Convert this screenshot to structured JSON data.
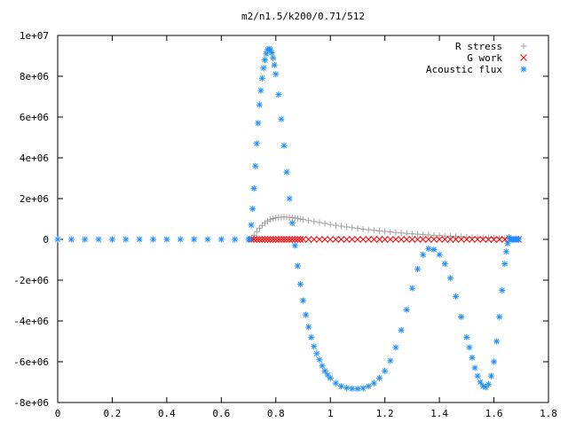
{
  "chart_data": {
    "type": "scatter",
    "title": "m2/n1.5/k200/0.71/512",
    "xlabel": "",
    "ylabel": "",
    "xlim": [
      0,
      1.8
    ],
    "ylim": [
      -8000000,
      10000000
    ],
    "x_ticks": [
      0,
      0.2,
      0.4,
      0.6,
      0.8,
      1,
      1.2,
      1.4,
      1.6,
      1.8
    ],
    "x_tick_labels": [
      "0",
      "0.2",
      "0.4",
      "0.6",
      "0.8",
      "1",
      "1.2",
      "1.4",
      "1.6",
      "1.8"
    ],
    "y_ticks": [
      -8000000,
      -6000000,
      -4000000,
      -2000000,
      0,
      2000000,
      4000000,
      6000000,
      8000000,
      10000000
    ],
    "y_tick_labels": [
      "-8e+06",
      "-6e+06",
      "-4e+06",
      "-2e+06",
      "0",
      "2e+06",
      "4e+06",
      "6e+06",
      "8e+06",
      "1e+07"
    ],
    "grid": false,
    "legend_position": "top-right",
    "series": [
      {
        "name": "R stress",
        "marker": "plus",
        "color": "#a0a0a0",
        "x": [
          0.71,
          0.72,
          0.73,
          0.74,
          0.75,
          0.76,
          0.77,
          0.78,
          0.79,
          0.8,
          0.81,
          0.82,
          0.83,
          0.84,
          0.85,
          0.86,
          0.87,
          0.88,
          0.89,
          0.9,
          0.92,
          0.94,
          0.96,
          0.98,
          1.0,
          1.02,
          1.04,
          1.06,
          1.08,
          1.1,
          1.12,
          1.14,
          1.16,
          1.18,
          1.2,
          1.22,
          1.24,
          1.26,
          1.28,
          1.3,
          1.32,
          1.34,
          1.36,
          1.38,
          1.4,
          1.42,
          1.44,
          1.46,
          1.48,
          1.5,
          1.52,
          1.54,
          1.56,
          1.58,
          1.6,
          1.62,
          1.64,
          1.66,
          1.68,
          1.69
        ],
        "y": [
          0,
          200000,
          380000,
          550000,
          690000,
          810000,
          900000,
          970000,
          1020000,
          1060000,
          1080000,
          1090000,
          1095000,
          1090000,
          1080000,
          1065000,
          1045000,
          1025000,
          1000000,
          975000,
          925000,
          875000,
          825000,
          780000,
          735000,
          690000,
          650000,
          610000,
          575000,
          540000,
          505000,
          475000,
          445000,
          415000,
          390000,
          365000,
          340000,
          315000,
          295000,
          275000,
          255000,
          235000,
          218000,
          200000,
          185000,
          170000,
          155000,
          142000,
          130000,
          118000,
          107000,
          96000,
          86000,
          77000,
          68000,
          60000,
          52000,
          45000,
          38000,
          35000
        ]
      },
      {
        "name": "G work",
        "marker": "cross",
        "color": "#ff0000",
        "x": [
          0.71,
          0.72,
          0.73,
          0.74,
          0.75,
          0.76,
          0.77,
          0.78,
          0.79,
          0.8,
          0.81,
          0.82,
          0.83,
          0.84,
          0.85,
          0.86,
          0.87,
          0.88,
          0.89,
          0.9,
          0.92,
          0.94,
          0.96,
          0.98,
          1.0,
          1.02,
          1.04,
          1.06,
          1.08,
          1.1,
          1.12,
          1.14,
          1.16,
          1.18,
          1.2,
          1.22,
          1.24,
          1.26,
          1.28,
          1.3,
          1.32,
          1.34,
          1.36,
          1.38,
          1.4,
          1.42,
          1.44,
          1.46,
          1.48,
          1.5,
          1.52,
          1.54,
          1.56,
          1.58,
          1.6,
          1.62,
          1.64,
          1.66,
          1.68,
          1.69
        ],
        "y": [
          0,
          0,
          0,
          0,
          0,
          0,
          0,
          0,
          0,
          0,
          0,
          0,
          0,
          0,
          0,
          0,
          0,
          0,
          0,
          0,
          0,
          0,
          0,
          0,
          0,
          0,
          0,
          0,
          0,
          0,
          0,
          0,
          0,
          0,
          0,
          0,
          0,
          0,
          0,
          0,
          0,
          0,
          0,
          0,
          0,
          0,
          0,
          0,
          0,
          0,
          0,
          0,
          0,
          0,
          0,
          0,
          0,
          0,
          0,
          0
        ]
      },
      {
        "name": "Acoustic flux",
        "marker": "star",
        "color": "#1e90ff",
        "x": [
          0,
          0.05,
          0.1,
          0.15,
          0.2,
          0.25,
          0.3,
          0.35,
          0.4,
          0.45,
          0.5,
          0.55,
          0.6,
          0.65,
          0.7,
          0.705,
          0.71,
          0.715,
          0.72,
          0.725,
          0.73,
          0.735,
          0.74,
          0.745,
          0.75,
          0.755,
          0.76,
          0.765,
          0.77,
          0.775,
          0.78,
          0.785,
          0.79,
          0.795,
          0.8,
          0.81,
          0.82,
          0.83,
          0.84,
          0.85,
          0.86,
          0.87,
          0.88,
          0.89,
          0.9,
          0.91,
          0.92,
          0.93,
          0.94,
          0.95,
          0.96,
          0.97,
          0.98,
          0.99,
          1.0,
          1.02,
          1.04,
          1.06,
          1.08,
          1.1,
          1.12,
          1.14,
          1.16,
          1.18,
          1.2,
          1.22,
          1.24,
          1.26,
          1.28,
          1.3,
          1.32,
          1.34,
          1.36,
          1.38,
          1.4,
          1.42,
          1.44,
          1.46,
          1.48,
          1.5,
          1.51,
          1.52,
          1.53,
          1.54,
          1.55,
          1.56,
          1.57,
          1.58,
          1.59,
          1.6,
          1.61,
          1.62,
          1.63,
          1.64,
          1.645,
          1.65,
          1.655,
          1.66,
          1.665,
          1.67,
          1.675,
          1.68,
          1.685,
          1.69
        ],
        "y": [
          0,
          0,
          0,
          0,
          0,
          0,
          0,
          0,
          0,
          0,
          0,
          0,
          0,
          0,
          0,
          0,
          700000,
          1500000,
          2500000,
          3600000,
          4700000,
          5700000,
          6600000,
          7300000,
          7900000,
          8400000,
          8800000,
          9100000,
          9300000,
          9350000,
          9300000,
          9150000,
          8900000,
          8550000,
          8100000,
          7100000,
          5900000,
          4600000,
          3300000,
          2000000,
          800000,
          -300000,
          -1300000,
          -2200000,
          -3000000,
          -3700000,
          -4300000,
          -4800000,
          -5250000,
          -5600000,
          -5900000,
          -6200000,
          -6450000,
          -6650000,
          -6800000,
          -7050000,
          -7200000,
          -7280000,
          -7320000,
          -7330000,
          -7300000,
          -7200000,
          -7050000,
          -6800000,
          -6450000,
          -5950000,
          -5300000,
          -4450000,
          -3450000,
          -2400000,
          -1450000,
          -750000,
          -450000,
          -500000,
          -750000,
          -1200000,
          -1900000,
          -2800000,
          -3800000,
          -4800000,
          -5300000,
          -5800000,
          -6300000,
          -6700000,
          -7000000,
          -7200000,
          -7250000,
          -7100000,
          -6700000,
          -6000000,
          -5000000,
          -3800000,
          -2500000,
          -1200000,
          -600000,
          -200000,
          100000,
          0,
          0,
          0,
          0,
          0,
          0,
          0
        ]
      }
    ]
  }
}
